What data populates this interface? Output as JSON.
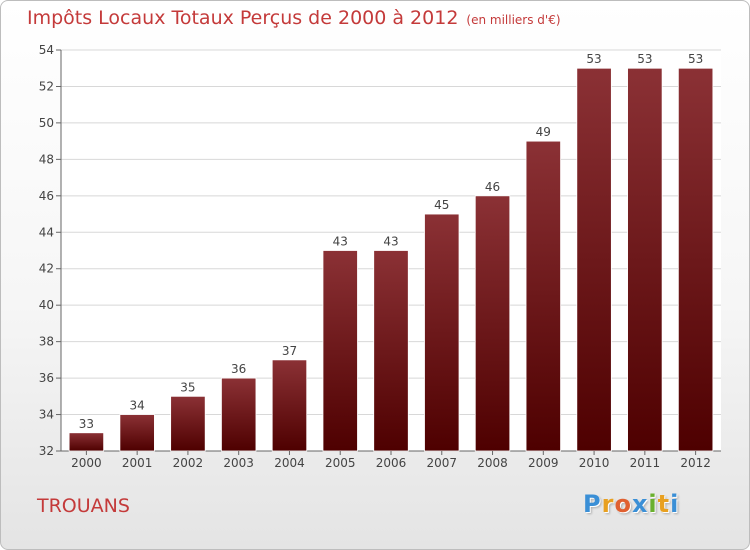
{
  "header": {
    "title": "Impôts Locaux Totaux Perçus de 2000 à 2012",
    "subtitle": "(en milliers d'€)"
  },
  "place_label": "TROUANS",
  "logo": {
    "letters": [
      "P",
      "r",
      "o",
      "x",
      "i",
      "t",
      "i"
    ],
    "colors": [
      "#3a8fd6",
      "#e8a020",
      "#e06030",
      "#3a8fd6",
      "#6ab02e",
      "#e8a020",
      "#3a8fd6"
    ]
  },
  "colors": {
    "bar_top": "#8b3135",
    "bar_bottom": "#4e0000",
    "title": "#c43a3a",
    "grid": "#d8d8d8"
  },
  "chart_data": {
    "type": "bar",
    "title": "Impôts Locaux Totaux Perçus de 2000 à 2012",
    "categories": [
      "2000",
      "2001",
      "2002",
      "2003",
      "2004",
      "2005",
      "2006",
      "2007",
      "2008",
      "2009",
      "2010",
      "2011",
      "2012"
    ],
    "values": [
      33,
      34,
      35,
      36,
      37,
      43,
      43,
      45,
      46,
      49,
      53,
      53,
      53
    ],
    "data_labels": [
      "33",
      "34",
      "35",
      "36",
      "37",
      "43",
      "43",
      "45",
      "46",
      "49",
      "53",
      "53",
      "53"
    ],
    "ylim": [
      32,
      54
    ],
    "yticks": [
      32,
      34,
      36,
      38,
      40,
      42,
      44,
      46,
      48,
      50,
      52,
      54
    ],
    "ytick_labels": [
      "32",
      "34",
      "36",
      "38",
      "40",
      "42",
      "44",
      "46",
      "48",
      "50",
      "52",
      "54"
    ],
    "xlabel": "",
    "ylabel": "",
    "grid": true
  }
}
